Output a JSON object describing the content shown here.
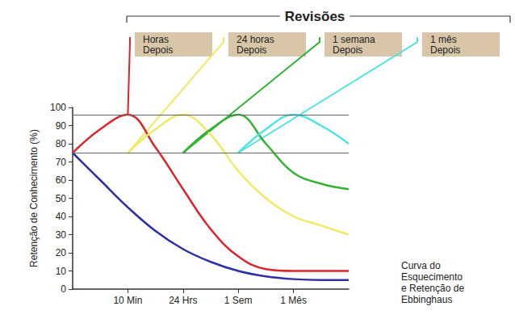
{
  "chart_data": {
    "type": "line",
    "title": "Revisões",
    "y_label": "Retenção de Conhecimento (%)",
    "caption": "Curva do\nEsquecimento\ne Retenção de\nEbbinghaus",
    "xlim": [
      0,
      5
    ],
    "xticks": [
      {
        "value": 1,
        "label": "10 Min"
      },
      {
        "value": 2,
        "label": "24 Hrs"
      },
      {
        "value": 3,
        "label": "1 Sem"
      },
      {
        "value": 4,
        "label": "1 Mês"
      }
    ],
    "ylim": [
      0,
      100
    ],
    "yticks": [
      0,
      10,
      20,
      30,
      40,
      50,
      60,
      70,
      80,
      90,
      100
    ],
    "grid": false,
    "reference_lines": [
      96,
      75
    ],
    "series": [
      {
        "color": "#2e2ea8",
        "x": [
          0,
          0.5,
          1,
          1.5,
          2,
          2.5,
          3,
          3.5,
          4,
          4.5,
          5
        ],
        "values": [
          75,
          60,
          45,
          32,
          22,
          15,
          10,
          7,
          5.5,
          5,
          5
        ]
      },
      {
        "color": "#d9252b",
        "annotation": "Horas\nDepois",
        "x": [
          0,
          0.5,
          1,
          1.5,
          2,
          2.5,
          3,
          3.5,
          4,
          4.5,
          5
        ],
        "values": [
          75,
          88,
          96,
          78,
          55,
          33,
          18,
          11,
          10,
          10,
          10
        ]
      },
      {
        "color": "#eeea66",
        "annotation": "24 horas\nDepois",
        "x": [
          1,
          1.5,
          2,
          2.5,
          3,
          3.5,
          4,
          4.5,
          5
        ],
        "values": [
          75,
          88,
          96,
          85,
          65,
          50,
          40,
          35,
          30
        ]
      },
      {
        "color": "#33b233",
        "annotation": "1 semana\nDepois",
        "x": [
          2,
          2.5,
          3,
          3.5,
          4,
          4.5,
          5
        ],
        "values": [
          75,
          88,
          96,
          80,
          64,
          58,
          55
        ]
      },
      {
        "color": "#4de3e3",
        "annotation": "1 mês\nDepois",
        "x": [
          3,
          3.5,
          4,
          4.5,
          5
        ],
        "values": [
          75,
          88,
          96,
          90,
          80
        ]
      }
    ]
  }
}
